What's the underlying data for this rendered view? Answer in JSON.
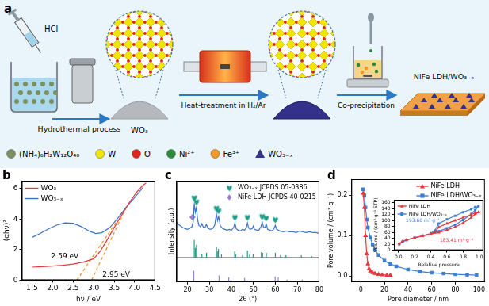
{
  "diagram": {
    "label": "a",
    "reagent": "HCl",
    "steps": [
      "Hydrothermal process",
      "Heat-treatment in H₂/Ar",
      "Co-precipitation"
    ],
    "intermediate": "WO₃",
    "product": "NiFe LDH/WO₃₋ₓ",
    "legend": [
      {
        "text": "(NH₄)₆H₂W₁₂O₄₀",
        "color": "#7d9160",
        "marker": "circle"
      },
      {
        "text": "W",
        "color": "#f2e600",
        "marker": "circle"
      },
      {
        "text": "O",
        "color": "#e0261b",
        "marker": "circle"
      },
      {
        "text": "Ni²⁺",
        "color": "#2d8a3a",
        "marker": "circle"
      },
      {
        "text": "Fe³⁺",
        "color": "#f09a28",
        "marker": "circle"
      },
      {
        "text": "WO₃₋ₓ",
        "color": "#33318a",
        "marker": "triangle"
      }
    ]
  },
  "chart_data": [
    {
      "panel": "b",
      "type": "line",
      "x_label": "hν / eV",
      "y_label": "(αhν)²",
      "xlim": [
        1.25,
        4.5
      ],
      "xticks": [
        1.5,
        {
          "value": 2,
          "label": "2.0"
        },
        2.5,
        {
          "value": 3,
          "label": "3.0"
        },
        3.5,
        {
          "value": 4,
          "label": "4.0"
        },
        4.5
      ],
      "ylim": [
        0,
        6.5
      ],
      "yticks": [
        0,
        2,
        4,
        6
      ],
      "grid": false,
      "legend": "upper left",
      "series": [
        {
          "name": "WO₃",
          "color": "#e8373d",
          "x": [
            1.5,
            1.75,
            2,
            2.25,
            2.5,
            2.75,
            3,
            3.15,
            3.3,
            3.45,
            3.6,
            3.75,
            3.9,
            4.05,
            4.2,
            4.28
          ],
          "values": [
            0.85,
            0.88,
            0.92,
            0.97,
            1.05,
            1.18,
            1.4,
            1.85,
            2.5,
            3.2,
            3.9,
            4.55,
            5.2,
            5.75,
            6.2,
            6.35
          ]
        },
        {
          "name": "WO₃₋ₓ",
          "color": "#3a73c9",
          "x": [
            1.5,
            1.7,
            1.9,
            2.1,
            2.3,
            2.5,
            2.7,
            2.9,
            3.05,
            3.2,
            3.4,
            3.6,
            3.8,
            4,
            4.2
          ],
          "values": [
            2.8,
            3.05,
            3.35,
            3.6,
            3.75,
            3.72,
            3.5,
            3.2,
            3.05,
            3.1,
            3.45,
            4.1,
            4.8,
            5.4,
            6.05
          ]
        }
      ],
      "tangents": [
        {
          "color": "#f0902a",
          "line_style": "dashed",
          "x": [
            2.59,
            3.55
          ],
          "values": [
            0,
            3.8
          ]
        },
        {
          "color": "#f0902a",
          "line_style": "dashed",
          "x": [
            2.95,
            3.8
          ],
          "values": [
            0,
            4.8
          ]
        }
      ],
      "annotations": [
        {
          "text": "2.59 eV",
          "x": 2.3,
          "y": 1.55
        },
        {
          "text": "2.95 eV",
          "x": 3.55,
          "y": 0.35
        }
      ]
    },
    {
      "panel": "c",
      "type": "line",
      "x_label": "2θ (°)",
      "y_label": "Intensity (a.u.)",
      "xlim": [
        15,
        80
      ],
      "xticks": [
        20,
        30,
        40,
        50,
        60,
        70,
        80
      ],
      "ylim": [
        0,
        125
      ],
      "tick_labels": "x",
      "grid": false,
      "legend": "upper right",
      "series": [
        {
          "color": "#3a73c9",
          "x": [
            15,
            16,
            17,
            18,
            19,
            20,
            21,
            22,
            22.6,
            23.1,
            23.6,
            24.1,
            24.6,
            25.2,
            26,
            26.6,
            27.2,
            28,
            28.6,
            29.5,
            30.5,
            31.5,
            32.4,
            33.2,
            33.7,
            34.2,
            35,
            36,
            37,
            38,
            39,
            40,
            41,
            41.6,
            42.2,
            43,
            44,
            45,
            46,
            46.8,
            47.3,
            47.8,
            48.5,
            49.5,
            50,
            50.5,
            51.5,
            52.5,
            53.4,
            54,
            54.6,
            55.3,
            55.8,
            56.5,
            57.5,
            58.5,
            59.4,
            60,
            60.6,
            62,
            63.5,
            65,
            66.5,
            68,
            69.5,
            71,
            72.5,
            74,
            75.5,
            77,
            78.5,
            80
          ],
          "values": [
            74,
            71,
            69,
            67,
            66,
            65,
            66,
            68,
            74,
            97,
            86,
            92,
            78,
            70,
            68,
            72,
            68,
            67,
            71,
            66,
            65,
            66,
            70,
            84,
            76,
            81,
            69,
            66,
            65,
            64,
            65,
            64,
            67,
            73,
            66,
            64,
            63,
            65,
            64,
            67,
            73,
            67,
            65,
            66,
            69,
            65,
            64,
            64,
            68,
            74,
            68,
            67,
            72,
            65,
            64,
            63,
            66,
            70,
            65,
            63,
            62,
            63,
            62,
            62,
            61,
            63,
            62,
            61,
            62,
            61,
            61,
            60
          ]
        }
      ],
      "reference_patterns": [
        {
          "name": "WO₃₋ₓ JCPDS 05-0386",
          "color": "#1f9e89",
          "marker": "heart",
          "baseline": 30,
          "positions": [
            23.1,
            23.6,
            24.1,
            26.6,
            28.7,
            33.2,
            33.6,
            34.1,
            35.5,
            41.5,
            42,
            45,
            47.3,
            48.3,
            49.9,
            53.6,
            54.2,
            55.9,
            60,
            62.3,
            64.8,
            71.8,
            76.5
          ],
          "intensities": [
            22,
            12,
            16,
            5,
            6,
            13,
            8,
            11,
            4,
            8,
            4,
            3,
            9,
            4,
            5,
            7,
            6,
            6,
            6,
            3,
            3,
            3,
            2
          ],
          "marked_peaks": {
            "x": [
              23.1,
              24.1,
              33.2,
              34.2,
              41.6,
              47.3,
              54,
              55.8,
              60
            ],
            "y": [
              104,
              99,
              91,
              88,
              80,
              80,
              81,
              79,
              77
            ]
          }
        },
        {
          "name": "NiFe LDH JCPDS 40-0215",
          "color": "#9a7fd1",
          "marker": "diamond",
          "baseline": 0,
          "positions": [
            22.9,
            34.4,
            38.8,
            46,
            59.9,
            61.3,
            65.3,
            72.2
          ],
          "intensities": [
            14,
            8,
            6,
            5,
            7,
            6,
            3,
            3
          ],
          "marked_peaks": {
            "x": [
              22.3
            ],
            "y": [
              80
            ]
          }
        }
      ]
    },
    {
      "panel": "d",
      "type": "line",
      "x_label": "Pore diameter / nm",
      "y_label": "Pore volume / (cm³·g⁻¹)",
      "xlim": [
        -8,
        105
      ],
      "xticks": [
        0,
        20,
        40,
        60,
        80,
        100
      ],
      "ylim": [
        -0.015,
        0.24
      ],
      "yticks": [
        {
          "value": 0,
          "label": "0.0"
        },
        0.1,
        0.2
      ],
      "grid": false,
      "legend": "upper right",
      "series": [
        {
          "name": "NiFe LDH",
          "color": "#e8373d",
          "marker": "triangle",
          "x": [
            2,
            3,
            4,
            5,
            6,
            7,
            8,
            10,
            12,
            15,
            18,
            22,
            25
          ],
          "values": [
            0.205,
            0.17,
            0.1,
            0.055,
            0.03,
            0.018,
            0.012,
            0.008,
            0.006,
            0.004,
            0.003,
            0.002,
            0.002
          ]
        },
        {
          "name": "NiFe LDH/WO₃₋ₓ",
          "color": "#3a7fd5",
          "marker": "square",
          "x": [
            2,
            3,
            4,
            5,
            6,
            8,
            10,
            12,
            15,
            20,
            25,
            30,
            40,
            50,
            60,
            70,
            80,
            90,
            98
          ],
          "values": [
            0.215,
            0.2,
            0.17,
            0.14,
            0.12,
            0.095,
            0.078,
            0.065,
            0.052,
            0.038,
            0.03,
            0.024,
            0.016,
            0.011,
            0.008,
            0.006,
            0.004,
            0.003,
            0.002
          ]
        }
      ],
      "inset": {
        "type": "line",
        "x_label": "Relative pressure",
        "y_label": "Volume / (cm³·g⁻¹ STP)",
        "xlim": [
          -0.05,
          1.05
        ],
        "xticks": [
          {
            "value": 0,
            "label": "0.0"
          },
          0.2,
          0.4,
          0.6,
          0.8,
          {
            "value": 1,
            "label": "1.0"
          }
        ],
        "ylim": [
          0,
          170
        ],
        "yticks": [
          0,
          20,
          40,
          60,
          80,
          100,
          120,
          140,
          160
        ],
        "grid": false,
        "legend": "upper left",
        "series": [
          {
            "name": "NiFe LDH",
            "color": "#e8373d",
            "marker": "triangle",
            "x": [
              0.01,
              0.05,
              0.1,
              0.2,
              0.3,
              0.4,
              0.5,
              0.6,
              0.7,
              0.8,
              0.9,
              0.95,
              0.99,
              0.95,
              0.9,
              0.8,
              0.7,
              0.6,
              0.5,
              0.45,
              0.4
            ],
            "values": [
              22,
              30,
              35,
              42,
              48,
              54,
              60,
              68,
              78,
              92,
              110,
              122,
              128,
              126,
              120,
              110,
              100,
              90,
              78,
              60,
              55
            ]
          },
          {
            "name": "NiFe LDH/WO₃₋ₓ",
            "color": "#3a7fd5",
            "marker": "square",
            "x": [
              0.01,
              0.05,
              0.1,
              0.2,
              0.3,
              0.4,
              0.5,
              0.6,
              0.7,
              0.8,
              0.9,
              0.95,
              0.99,
              0.95,
              0.9,
              0.8,
              0.7,
              0.6,
              0.5,
              0.45,
              0.4
            ],
            "values": [
              20,
              28,
              34,
              42,
              49,
              56,
              64,
              74,
              86,
              102,
              122,
              135,
              148,
              145,
              138,
              128,
              116,
              104,
              90,
              66,
              57
            ]
          }
        ],
        "annotations": [
          {
            "text": "193.60 m²·g⁻¹",
            "x": 0.3,
            "y": 100,
            "color": "#3a7fd5"
          },
          {
            "text": "183.41 m²·g⁻¹",
            "x": 0.72,
            "y": 32,
            "color": "#e8373d"
          }
        ]
      }
    }
  ]
}
